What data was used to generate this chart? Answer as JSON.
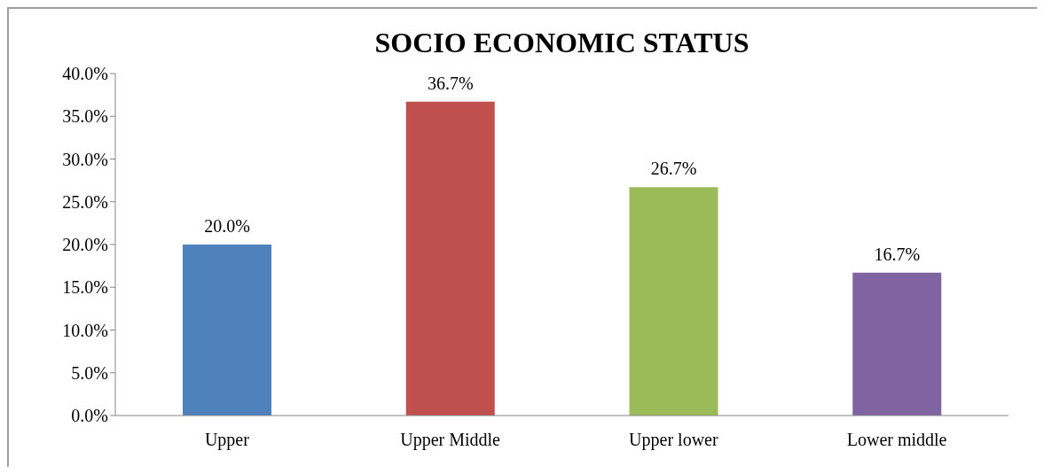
{
  "chart_data": {
    "type": "bar",
    "title": "SOCIO ECONOMIC STATUS",
    "categories": [
      "Upper",
      "Upper Middle",
      "Upper lower",
      "Lower middle"
    ],
    "values": [
      20.0,
      36.7,
      26.7,
      16.7
    ],
    "colors": [
      "#4f81bd",
      "#c0504d",
      "#9bbb59",
      "#8064a2"
    ],
    "value_labels": [
      "20.0%",
      "36.7%",
      "26.7%",
      "16.7%"
    ],
    "ylim": [
      0,
      40
    ],
    "yticks": [
      {
        "value": 0,
        "label": "0.0%"
      },
      {
        "value": 5,
        "label": "5.0%"
      },
      {
        "value": 10,
        "label": "10.0%"
      },
      {
        "value": 15,
        "label": "15.0%"
      },
      {
        "value": 20,
        "label": "20.0%"
      },
      {
        "value": 25,
        "label": "25.0%"
      },
      {
        "value": 30,
        "label": "30.0%"
      },
      {
        "value": 35,
        "label": "35.0%"
      },
      {
        "value": 40,
        "label": "40.0%"
      }
    ],
    "grid": false,
    "legend": false
  }
}
